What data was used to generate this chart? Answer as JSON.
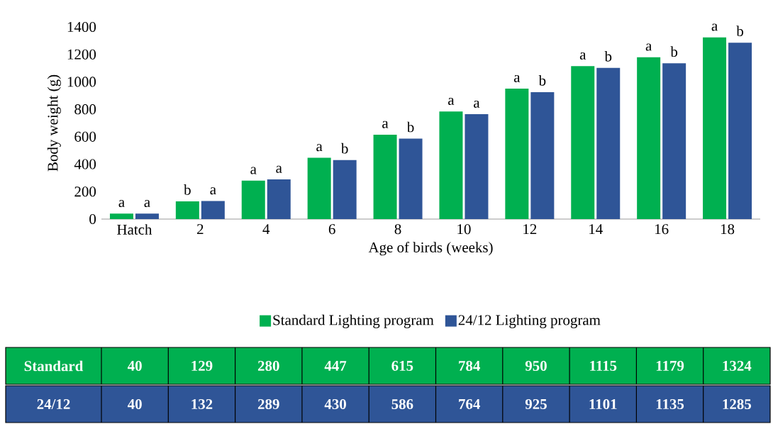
{
  "chart_data": {
    "type": "bar",
    "xlabel": "Age of birds (weeks)",
    "ylabel": "Body weight (g)",
    "categories": [
      "Hatch",
      "2",
      "4",
      "6",
      "8",
      "10",
      "12",
      "14",
      "16",
      "18"
    ],
    "series": [
      {
        "name": "Standard Lighting program",
        "color": "#00b050",
        "values": [
          40,
          129,
          280,
          447,
          615,
          784,
          950,
          1115,
          1179,
          1324
        ],
        "value_labels": [
          "40",
          "129",
          "280",
          "447",
          "615",
          "784",
          "950",
          "1115",
          "1179",
          "1324"
        ]
      },
      {
        "name": "24/12 Lighting program",
        "color": "#2f5597",
        "values": [
          40,
          132,
          289,
          430,
          586,
          764,
          925,
          1101,
          1135,
          1285
        ],
        "value_labels": [
          "40",
          "132",
          "289",
          "430",
          "586",
          "764",
          "925",
          "1101",
          "1135",
          "1285"
        ]
      }
    ],
    "ylim": [
      0,
      1400
    ],
    "yticks": [
      0,
      200,
      400,
      600,
      800,
      1000,
      1200,
      1400
    ],
    "legend": "bottom",
    "annotations": [
      "Standard",
      "24/12",
      {
        "text": "a",
        "x": "Hatch",
        "y": 40
      },
      {
        "text": "a",
        "x": "Hatch",
        "y": 40
      },
      {
        "text": "b",
        "x": "2",
        "y": 129
      },
      {
        "text": "a",
        "x": "2",
        "y": 132
      },
      {
        "text": "a",
        "x": "4",
        "y": 280
      },
      {
        "text": "a",
        "x": "4",
        "y": 289
      },
      {
        "text": "a",
        "x": "6",
        "y": 447
      },
      {
        "text": "b",
        "x": "6",
        "y": 430
      },
      {
        "text": "a",
        "x": "8",
        "y": 615
      },
      {
        "text": "b",
        "x": "8",
        "y": 586
      },
      {
        "text": "a",
        "x": "10",
        "y": 784
      },
      {
        "text": "a",
        "x": "10",
        "y": 764
      },
      {
        "text": "a",
        "x": "12",
        "y": 950
      },
      {
        "text": "b",
        "x": "12",
        "y": 925
      },
      {
        "text": "a",
        "x": "14",
        "y": 1115
      },
      {
        "text": "b",
        "x": "14",
        "y": 1101
      },
      {
        "text": "a",
        "x": "16",
        "y": 1179
      },
      {
        "text": "b",
        "x": "16",
        "y": 1135
      },
      {
        "text": "a",
        "x": "18",
        "y": 1324
      },
      {
        "text": "b",
        "x": "18",
        "y": 1285
      }
    ]
  }
}
